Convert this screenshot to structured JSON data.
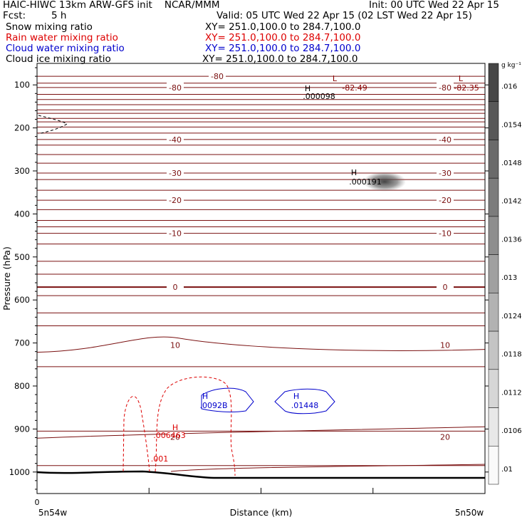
{
  "header": {
    "title": "HAIC-HIWC 13km ARW-GFS init    NCAR/MMM",
    "init": "Init: 00 UTC Wed 22 Apr 15",
    "fcst_label": "Fcst:",
    "fcst_value": "5 h",
    "valid": "Valid: 05 UTC Wed 22 Apr 15 (02 LST Wed 22 Apr 15)",
    "fields": [
      {
        "name": "Snow mixing ratio",
        "xy": "XY= 251.0,100.0 to 284.7,100.0",
        "color": "#000000"
      },
      {
        "name": "Rain water mixing ratio",
        "xy": "XY= 251.0,100.0 to 284.7,100.0",
        "color": "#dd0000"
      },
      {
        "name": "Cloud water mixing ratio",
        "xy": "XY= 251.0,100.0 to 284.7,100.0",
        "color": "#0000cc"
      },
      {
        "name": "Cloud ice mixing ratio",
        "xy": "XY= 251.0,100.0 to 284.7,100.0",
        "color": "#000000"
      }
    ]
  },
  "chart_data": {
    "type": "cross-section contour",
    "ylabel": "Pressure (hPa)",
    "xlabel": "Distance (km)",
    "yticks": [
      100,
      200,
      300,
      400,
      500,
      600,
      700,
      800,
      900,
      1000
    ],
    "ylim": [
      1050,
      50
    ],
    "xlim": [
      0,
      4
    ],
    "x_tick_values": [
      0,
      1,
      2,
      3,
      4
    ],
    "x_tick_labels": [
      "0"
    ],
    "x_end_labels": {
      "left": "5n54w",
      "right": "5n50w"
    },
    "temperature_isotherms": [
      {
        "label": "-80",
        "p": 80
      },
      {
        "label": "-80",
        "p": 106
      },
      {
        "label": "-40",
        "p": 227
      },
      {
        "label": "-30",
        "p": 305
      },
      {
        "label": "-20",
        "p": 368
      },
      {
        "label": "-10",
        "p": 445
      },
      {
        "label": "0",
        "p": 570
      },
      {
        "label": "10",
        "p": 705
      },
      {
        "label": "20",
        "p": 918
      }
    ],
    "extrema": [
      {
        "kind": "L",
        "value": "-82.49",
        "color": "#8b0000"
      },
      {
        "kind": "L",
        "value": "-82.35",
        "color": "#8b0000"
      },
      {
        "kind": "H",
        "value": ".000098",
        "color": "#000000"
      },
      {
        "kind": "H",
        "value": ".000191",
        "color": "#000000"
      },
      {
        "kind": "H",
        "value": ".0092B",
        "color": "#0000cc"
      },
      {
        "kind": "H",
        "value": ".01448",
        "color": "#0000cc"
      },
      {
        "kind": "H",
        "value": ".006463",
        "color": "#dd0000"
      }
    ],
    "contour_labels": [
      {
        "text": ".001",
        "color": "#dd0000"
      }
    ],
    "colorbar": {
      "unit": "g kg⁻¹",
      "labels": [
        ".016",
        ".0154",
        ".0148",
        ".0142",
        ".0136",
        ".013",
        ".0124",
        ".0118",
        ".0112",
        ".0106",
        ".01"
      ]
    },
    "grid": false
  }
}
